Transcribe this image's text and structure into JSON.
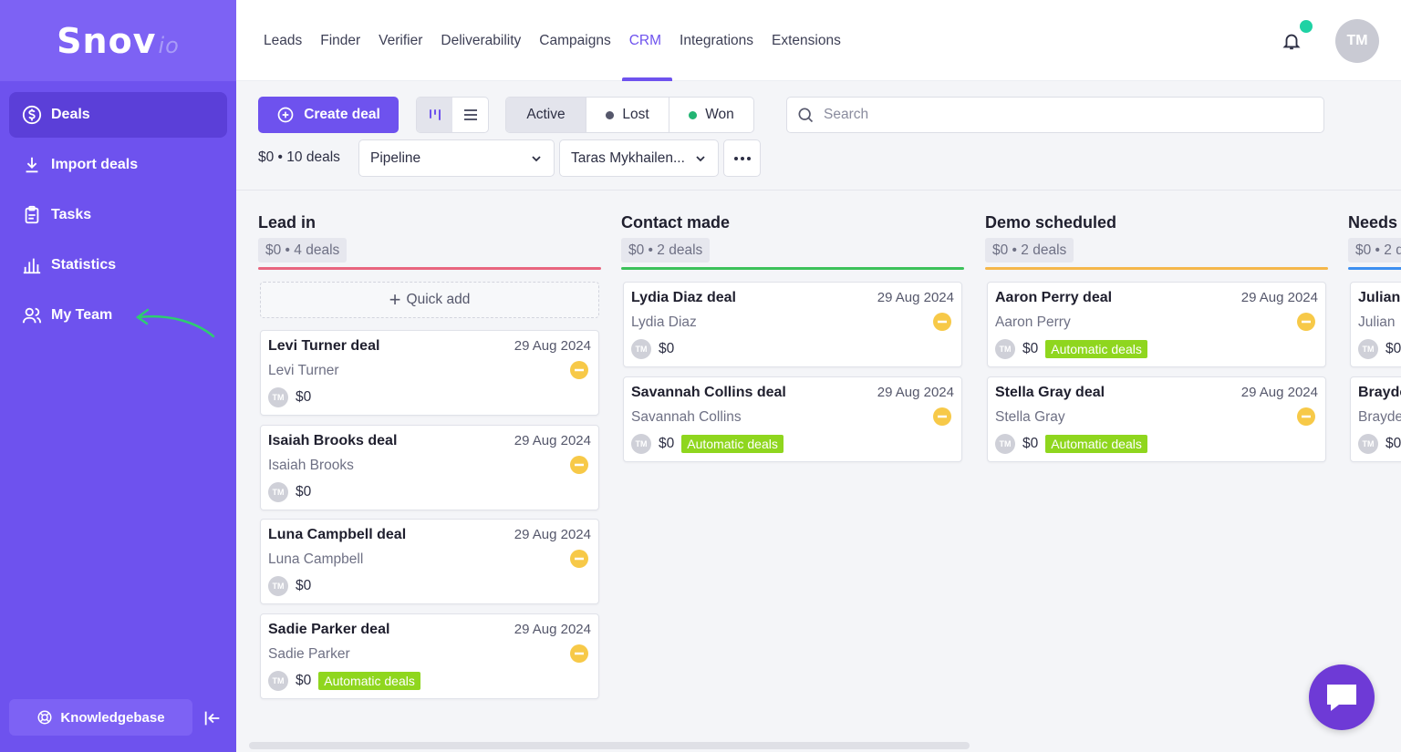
{
  "app": {
    "logo": "Snov",
    "logo_suffix": "io",
    "avatar_initials": "TM"
  },
  "sidebar": {
    "items": [
      {
        "label": "Deals",
        "icon": "dollar-icon",
        "active": true
      },
      {
        "label": "Import deals",
        "icon": "download-icon"
      },
      {
        "label": "Tasks",
        "icon": "clipboard-icon"
      },
      {
        "label": "Statistics",
        "icon": "bar-chart-icon"
      },
      {
        "label": "My Team",
        "icon": "team-icon"
      }
    ],
    "knowledgebase_label": "Knowledgebase"
  },
  "topnav": {
    "items": [
      "Leads",
      "Finder",
      "Verifier",
      "Deliverability",
      "Campaigns",
      "CRM",
      "Integrations",
      "Extensions"
    ],
    "active": "CRM"
  },
  "toolbar": {
    "create_label": "Create deal",
    "status": {
      "active": "Active",
      "lost": "Lost",
      "won": "Won"
    },
    "status_colors": {
      "lost": "#55576b",
      "won": "#22b573"
    },
    "search_placeholder": "Search",
    "summary": "$0 • 10 deals",
    "pipeline_value": "Pipeline",
    "owner_value": "Taras Mykhailen..."
  },
  "colors": {
    "accent": "#6e52ee",
    "tag": "#8fd61e",
    "priority": "#f7c948"
  },
  "board": {
    "quick_add_label": "Quick add",
    "columns": [
      {
        "title": "Lead in",
        "summary": "$0 • 4 deals",
        "color": "#e8657f",
        "cards": [
          {
            "name": "Levi Turner deal",
            "date": "29 Aug 2024",
            "person": "Levi Turner",
            "value": "$0",
            "tag": ""
          },
          {
            "name": "Isaiah Brooks deal",
            "date": "29 Aug 2024",
            "person": "Isaiah Brooks",
            "value": "$0",
            "tag": ""
          },
          {
            "name": "Luna Campbell deal",
            "date": "29 Aug 2024",
            "person": "Luna Campbell",
            "value": "$0",
            "tag": ""
          },
          {
            "name": "Sadie Parker deal",
            "date": "29 Aug 2024",
            "person": "Sadie Parker",
            "value": "$0",
            "tag": "Automatic deals"
          }
        ]
      },
      {
        "title": "Contact made",
        "summary": "$0 • 2 deals",
        "color": "#3cc15a",
        "cards": [
          {
            "name": "Lydia Diaz deal",
            "date": "29 Aug 2024",
            "person": "Lydia Diaz",
            "value": "$0",
            "tag": ""
          },
          {
            "name": "Savannah Collins deal",
            "date": "29 Aug 2024",
            "person": "Savannah Collins",
            "value": "$0",
            "tag": "Automatic deals"
          }
        ]
      },
      {
        "title": "Demo scheduled",
        "summary": "$0 • 2 deals",
        "color": "#f5b74a",
        "cards": [
          {
            "name": "Aaron Perry deal",
            "date": "29 Aug 2024",
            "person": "Aaron Perry",
            "value": "$0",
            "tag": "Automatic deals"
          },
          {
            "name": "Stella Gray deal",
            "date": "29 Aug 2024",
            "person": "Stella Gray",
            "value": "$0",
            "tag": "Automatic deals"
          }
        ]
      },
      {
        "title": "Needs",
        "summary": "$0 • 2 d",
        "color": "#3d8ff0",
        "cards": [
          {
            "name": "Julian",
            "date": "",
            "person": "Julian",
            "value": "$0",
            "tag": ""
          },
          {
            "name": "Brayde",
            "date": "",
            "person": "Brayde",
            "value": "$0",
            "tag": ""
          }
        ]
      }
    ]
  }
}
